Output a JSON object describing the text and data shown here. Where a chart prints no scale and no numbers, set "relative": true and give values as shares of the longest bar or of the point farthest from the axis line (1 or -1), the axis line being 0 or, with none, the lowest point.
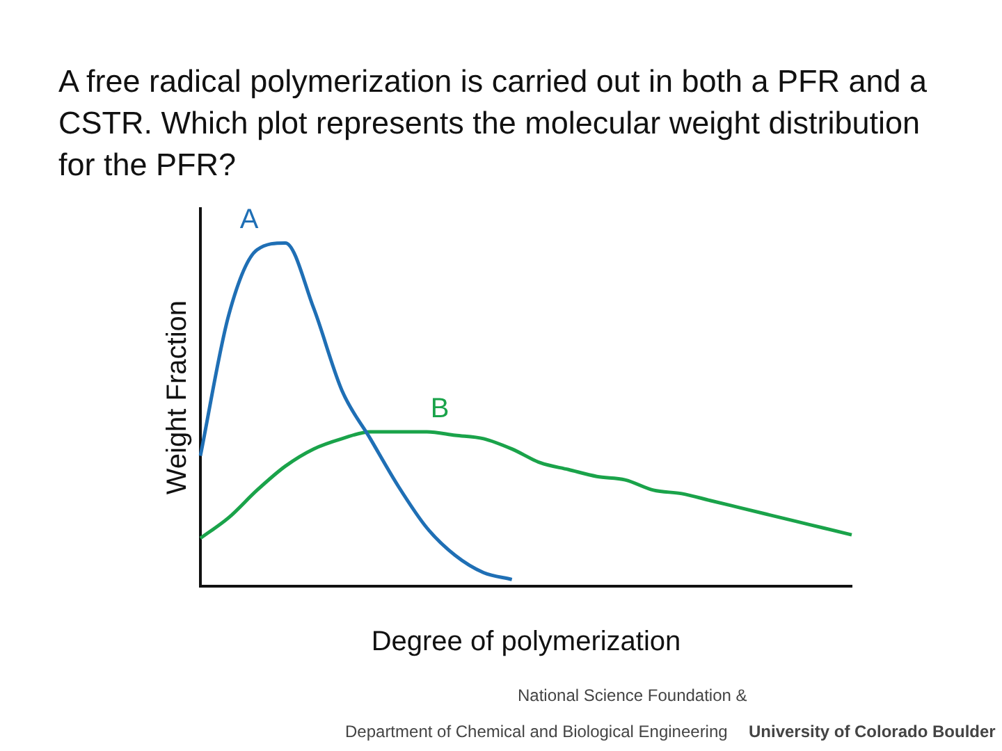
{
  "chart_data": {
    "type": "line",
    "title": "A free radical polymerization is carried out in both a PFR and a CSTR. Which plot represents the molecular weight distribution for the PFR?",
    "xlabel": "Degree of polymerization",
    "ylabel": "Weight Fraction",
    "relative": true,
    "grid": false,
    "legend": false,
    "marker": "none",
    "line_style": "solid",
    "categories": [
      null,
      null,
      null,
      null,
      null,
      null,
      null,
      null,
      null,
      null,
      null,
      null,
      null,
      null,
      null,
      null,
      null,
      null,
      null,
      null,
      null,
      null,
      null,
      null
    ],
    "series": [
      {
        "name": "A",
        "color": "#1f6fb5",
        "values": [
          0.38,
          0.79,
          0.98,
          1,
          0.81,
          0.57,
          0.43,
          0.29,
          0.17,
          0.09,
          0.04,
          0.02,
          null,
          null,
          null,
          null,
          null,
          null,
          null,
          null,
          null,
          null,
          null,
          null
        ]
      },
      {
        "name": "B",
        "color": "#1aa34a",
        "values": [
          0.14,
          0.2,
          0.28,
          0.35,
          0.4,
          0.43,
          0.45,
          0.45,
          0.45,
          0.44,
          0.43,
          0.4,
          0.36,
          0.34,
          0.32,
          0.31,
          0.28,
          0.27,
          0.25,
          0.23,
          0.21,
          0.19,
          0.17,
          0.15
        ]
      }
    ],
    "annotations": [
      "National Science Foundation &",
      "Department of Chemical and Biological Engineering",
      "University of Colorado Boulder"
    ]
  }
}
